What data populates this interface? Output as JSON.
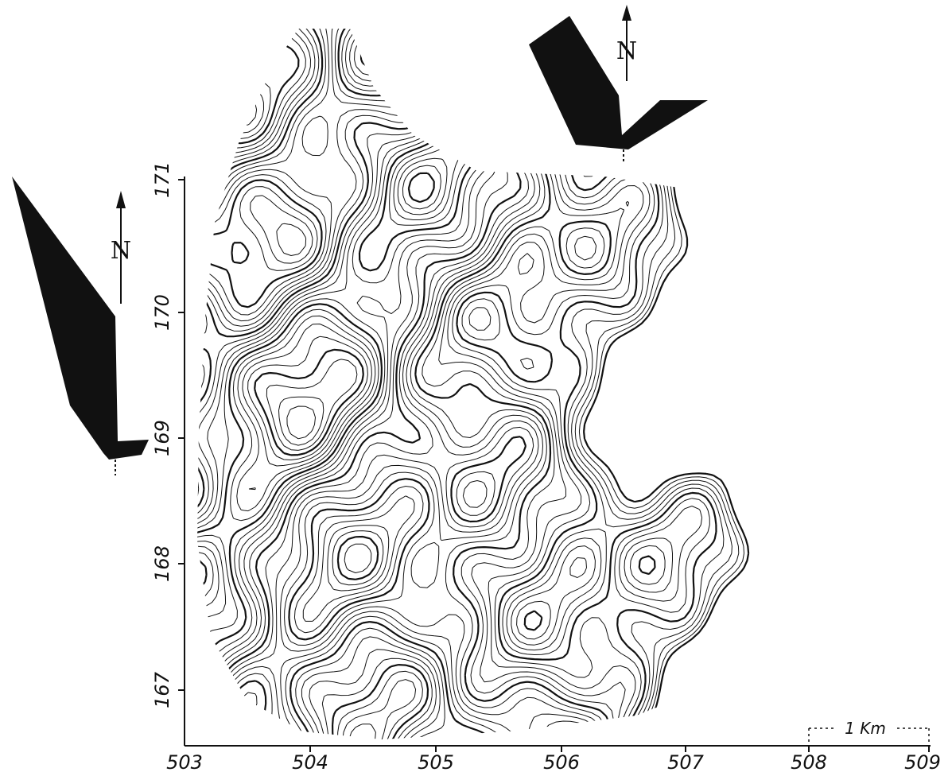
{
  "map": {
    "x_ticks": [
      "503",
      "504",
      "505",
      "506",
      "507",
      "508",
      "509"
    ],
    "y_ticks": [
      "167",
      "168",
      "169",
      "170",
      "171"
    ],
    "scale_bar": {
      "label": "1 Km"
    },
    "north_label": "N",
    "colors": {
      "ink": "#111111",
      "paper": "#ffffff"
    },
    "icons": [
      "north-arrow-icon",
      "fold-orientation-symbol",
      "scale-bar-icon"
    ]
  }
}
